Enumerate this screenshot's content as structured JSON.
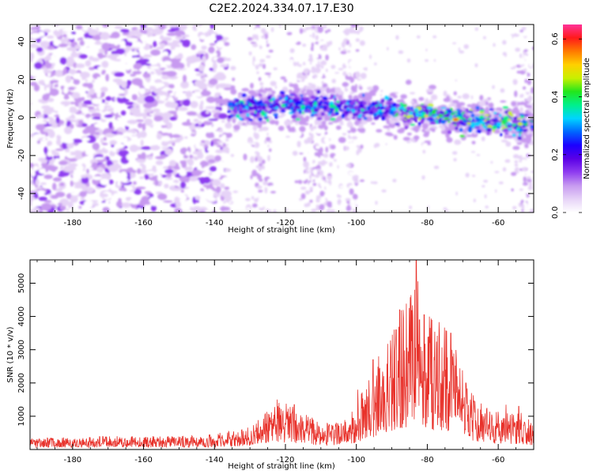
{
  "title": "C2E2.2024.334.07.17.E30",
  "colors": {
    "snr_line": "#e8322b",
    "colormap": [
      "#ffffff",
      "#e6d3f7",
      "#c79af0",
      "#8f3df0",
      "#5a00e6",
      "#1c00ff",
      "#0066ff",
      "#00d4ff",
      "#00f08c",
      "#22e61c",
      "#c8f000",
      "#ffd000",
      "#ff7a00",
      "#ff1a1a",
      "#ff3399"
    ]
  },
  "chart_data": [
    {
      "type": "heatmap",
      "xlabel": "Height of straight line (km)",
      "ylabel": "Frequency (Hz)",
      "colorbar_label": "Normalized spectral amplitude",
      "xlim": [
        -192,
        -50
      ],
      "ylim": [
        -50,
        49
      ],
      "xticks": [
        -180,
        -160,
        -140,
        -120,
        -100,
        -80,
        -60
      ],
      "yticks": [
        -40,
        -20,
        0,
        20,
        40
      ],
      "cticks": [
        0.0,
        0.2,
        0.4,
        0.6
      ],
      "clim": [
        0,
        0.65
      ],
      "band_center_hz": [
        {
          "x": -136,
          "y": 4
        },
        {
          "x": -120,
          "y": 7
        },
        {
          "x": -100,
          "y": 5
        },
        {
          "x": -80,
          "y": 1
        },
        {
          "x": -60,
          "y": -3
        },
        {
          "x": -52,
          "y": -4
        }
      ],
      "peak": {
        "x": -72,
        "y": -1,
        "value": 0.6
      }
    },
    {
      "type": "line",
      "series_name": "SNR",
      "xlabel": "Height of straight line (km)",
      "ylabel": "SNR (10 * v/v)",
      "xlim": [
        -192,
        -50
      ],
      "ylim": [
        0,
        5700
      ],
      "xticks": [
        -180,
        -160,
        -140,
        -120,
        -100,
        -80,
        -60
      ],
      "yticks": [
        1000,
        2000,
        3000,
        4000,
        5000
      ],
      "envelope": [
        {
          "x": -192,
          "y": 250
        },
        {
          "x": -170,
          "y": 300
        },
        {
          "x": -150,
          "y": 300
        },
        {
          "x": -140,
          "y": 350
        },
        {
          "x": -130,
          "y": 500
        },
        {
          "x": -122,
          "y": 1100
        },
        {
          "x": -115,
          "y": 900
        },
        {
          "x": -110,
          "y": 550
        },
        {
          "x": -104,
          "y": 700
        },
        {
          "x": -100,
          "y": 1000
        },
        {
          "x": -95,
          "y": 1900
        },
        {
          "x": -90,
          "y": 2700
        },
        {
          "x": -86,
          "y": 3300
        },
        {
          "x": -83,
          "y": 4000
        },
        {
          "x": -80,
          "y": 3100
        },
        {
          "x": -76,
          "y": 2900
        },
        {
          "x": -72,
          "y": 2300
        },
        {
          "x": -68,
          "y": 1300
        },
        {
          "x": -63,
          "y": 900
        },
        {
          "x": -58,
          "y": 800
        },
        {
          "x": -54,
          "y": 850
        },
        {
          "x": -50,
          "y": 600
        }
      ],
      "peaks": [
        {
          "x": -122.3,
          "y": 1500
        },
        {
          "x": -117.5,
          "y": 1350
        },
        {
          "x": -99.6,
          "y": 1800
        },
        {
          "x": -95.3,
          "y": 2700
        },
        {
          "x": -93.7,
          "y": 2800
        },
        {
          "x": -88.8,
          "y": 3600
        },
        {
          "x": -87.8,
          "y": 4200
        },
        {
          "x": -84.9,
          "y": 3700
        },
        {
          "x": -83.1,
          "y": 5700
        },
        {
          "x": -82.2,
          "y": 3900
        },
        {
          "x": -79.3,
          "y": 3200
        },
        {
          "x": -73.4,
          "y": 3500
        },
        {
          "x": -69.1,
          "y": 2000
        },
        {
          "x": -63.2,
          "y": 1250
        },
        {
          "x": -57.8,
          "y": 1350
        },
        {
          "x": -54.2,
          "y": 1300
        }
      ]
    }
  ]
}
